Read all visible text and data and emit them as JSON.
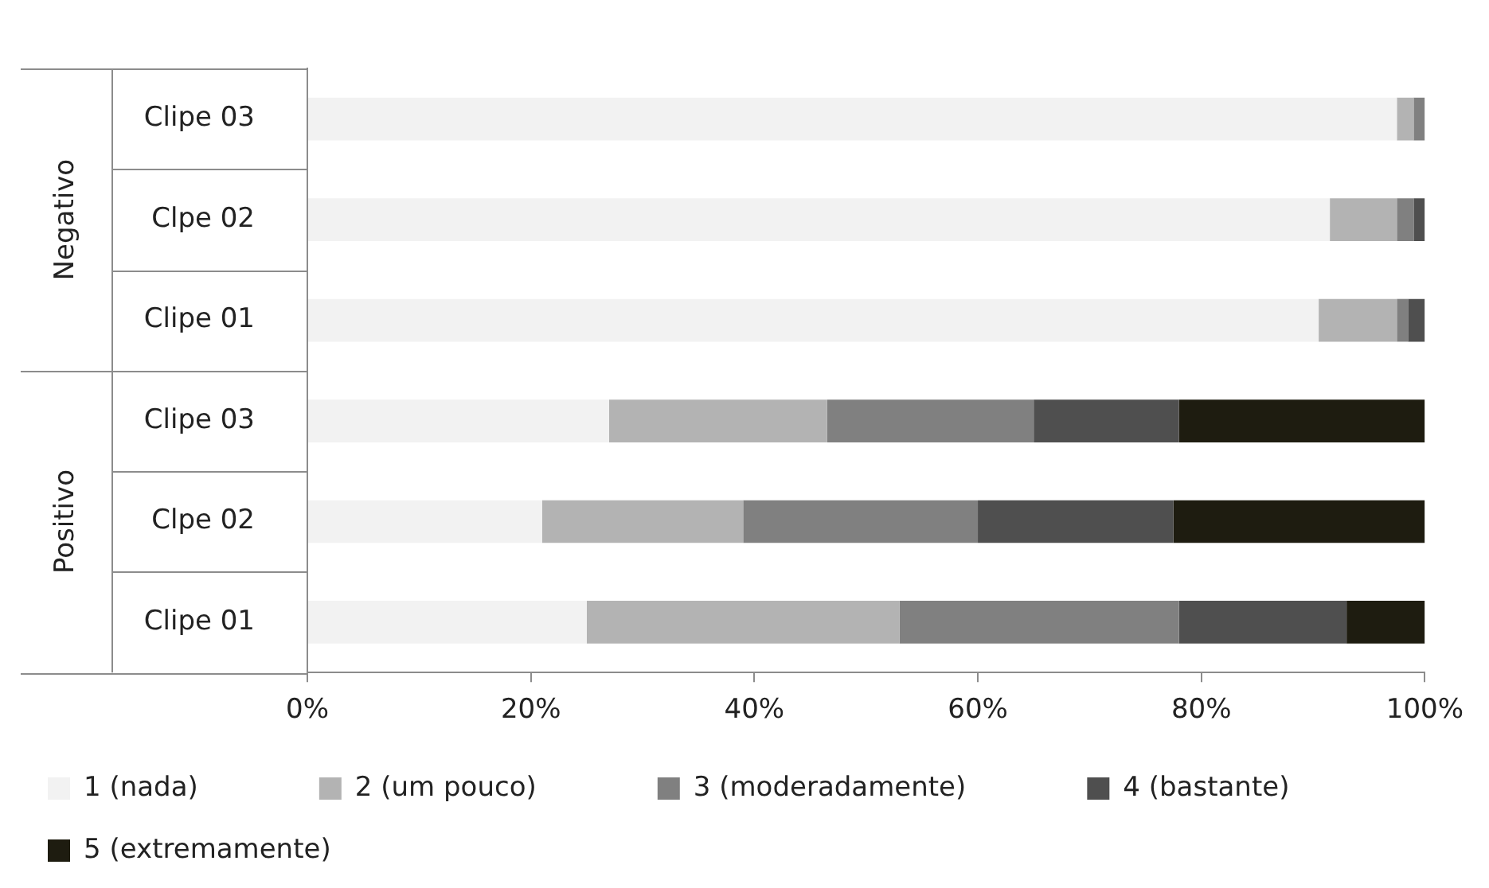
{
  "chart_data": {
    "type": "bar",
    "orientation": "horizontal",
    "stacked": true,
    "categories": [
      "Clipe 03",
      "Clpe 02",
      "Clipe 01",
      "Clipe 03",
      "Clpe 02",
      "Clipe 01"
    ],
    "series": [
      {
        "name": "1 (nada)",
        "color": "#f2f2f2",
        "values": [
          97.5,
          91.5,
          90.5,
          27,
          21,
          25
        ]
      },
      {
        "name": "2 (um pouco)",
        "color": "#b3b3b3",
        "values": [
          1.5,
          6,
          7,
          19.5,
          18,
          28
        ]
      },
      {
        "name": "3 (moderadamente)",
        "color": "#808080",
        "values": [
          1,
          1.5,
          1,
          18.5,
          21,
          25
        ]
      },
      {
        "name": "4 (bastante)",
        "color": "#4f4f4f",
        "values": [
          0,
          1,
          1.5,
          13,
          17.5,
          15
        ]
      },
      {
        "name": "5 (extremamente)",
        "color": "#1e1c10",
        "values": [
          0,
          0,
          0,
          22,
          22.5,
          7
        ]
      }
    ],
    "xlim": [
      0,
      100
    ],
    "xticks": [
      {
        "value": 0,
        "label": "0%"
      },
      {
        "value": 20,
        "label": "20%"
      },
      {
        "value": 40,
        "label": "40%"
      },
      {
        "value": 60,
        "label": "60%"
      },
      {
        "value": 80,
        "label": "80%"
      },
      {
        "value": 100,
        "label": "100%"
      }
    ],
    "annotations": [
      "Negativo",
      "Positivo"
    ],
    "legend": "bottom",
    "grid": false
  }
}
